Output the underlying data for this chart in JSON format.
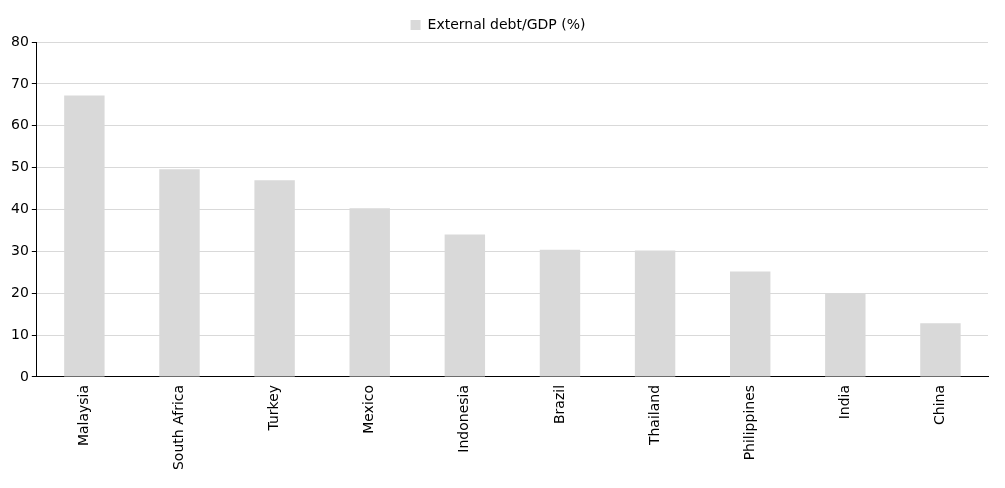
{
  "chart_data": {
    "type": "bar",
    "categories": [
      "Malaysia",
      "South Africa",
      "Turkey",
      "Mexico",
      "Indonesia",
      "Brazil",
      "Thailand",
      "Philippines",
      "India",
      "China"
    ],
    "series": [
      {
        "name": "External debt/GDP (%)",
        "color": "#d9d9d9",
        "values": [
          67.2,
          49.6,
          47.0,
          40.3,
          34.0,
          30.4,
          30.2,
          25.2,
          19.9,
          12.8
        ]
      }
    ],
    "ylim": [
      0,
      80
    ],
    "yticks": [
      0,
      10,
      20,
      30,
      40,
      50,
      60,
      70,
      80
    ],
    "grid": "y",
    "legend": "top"
  }
}
